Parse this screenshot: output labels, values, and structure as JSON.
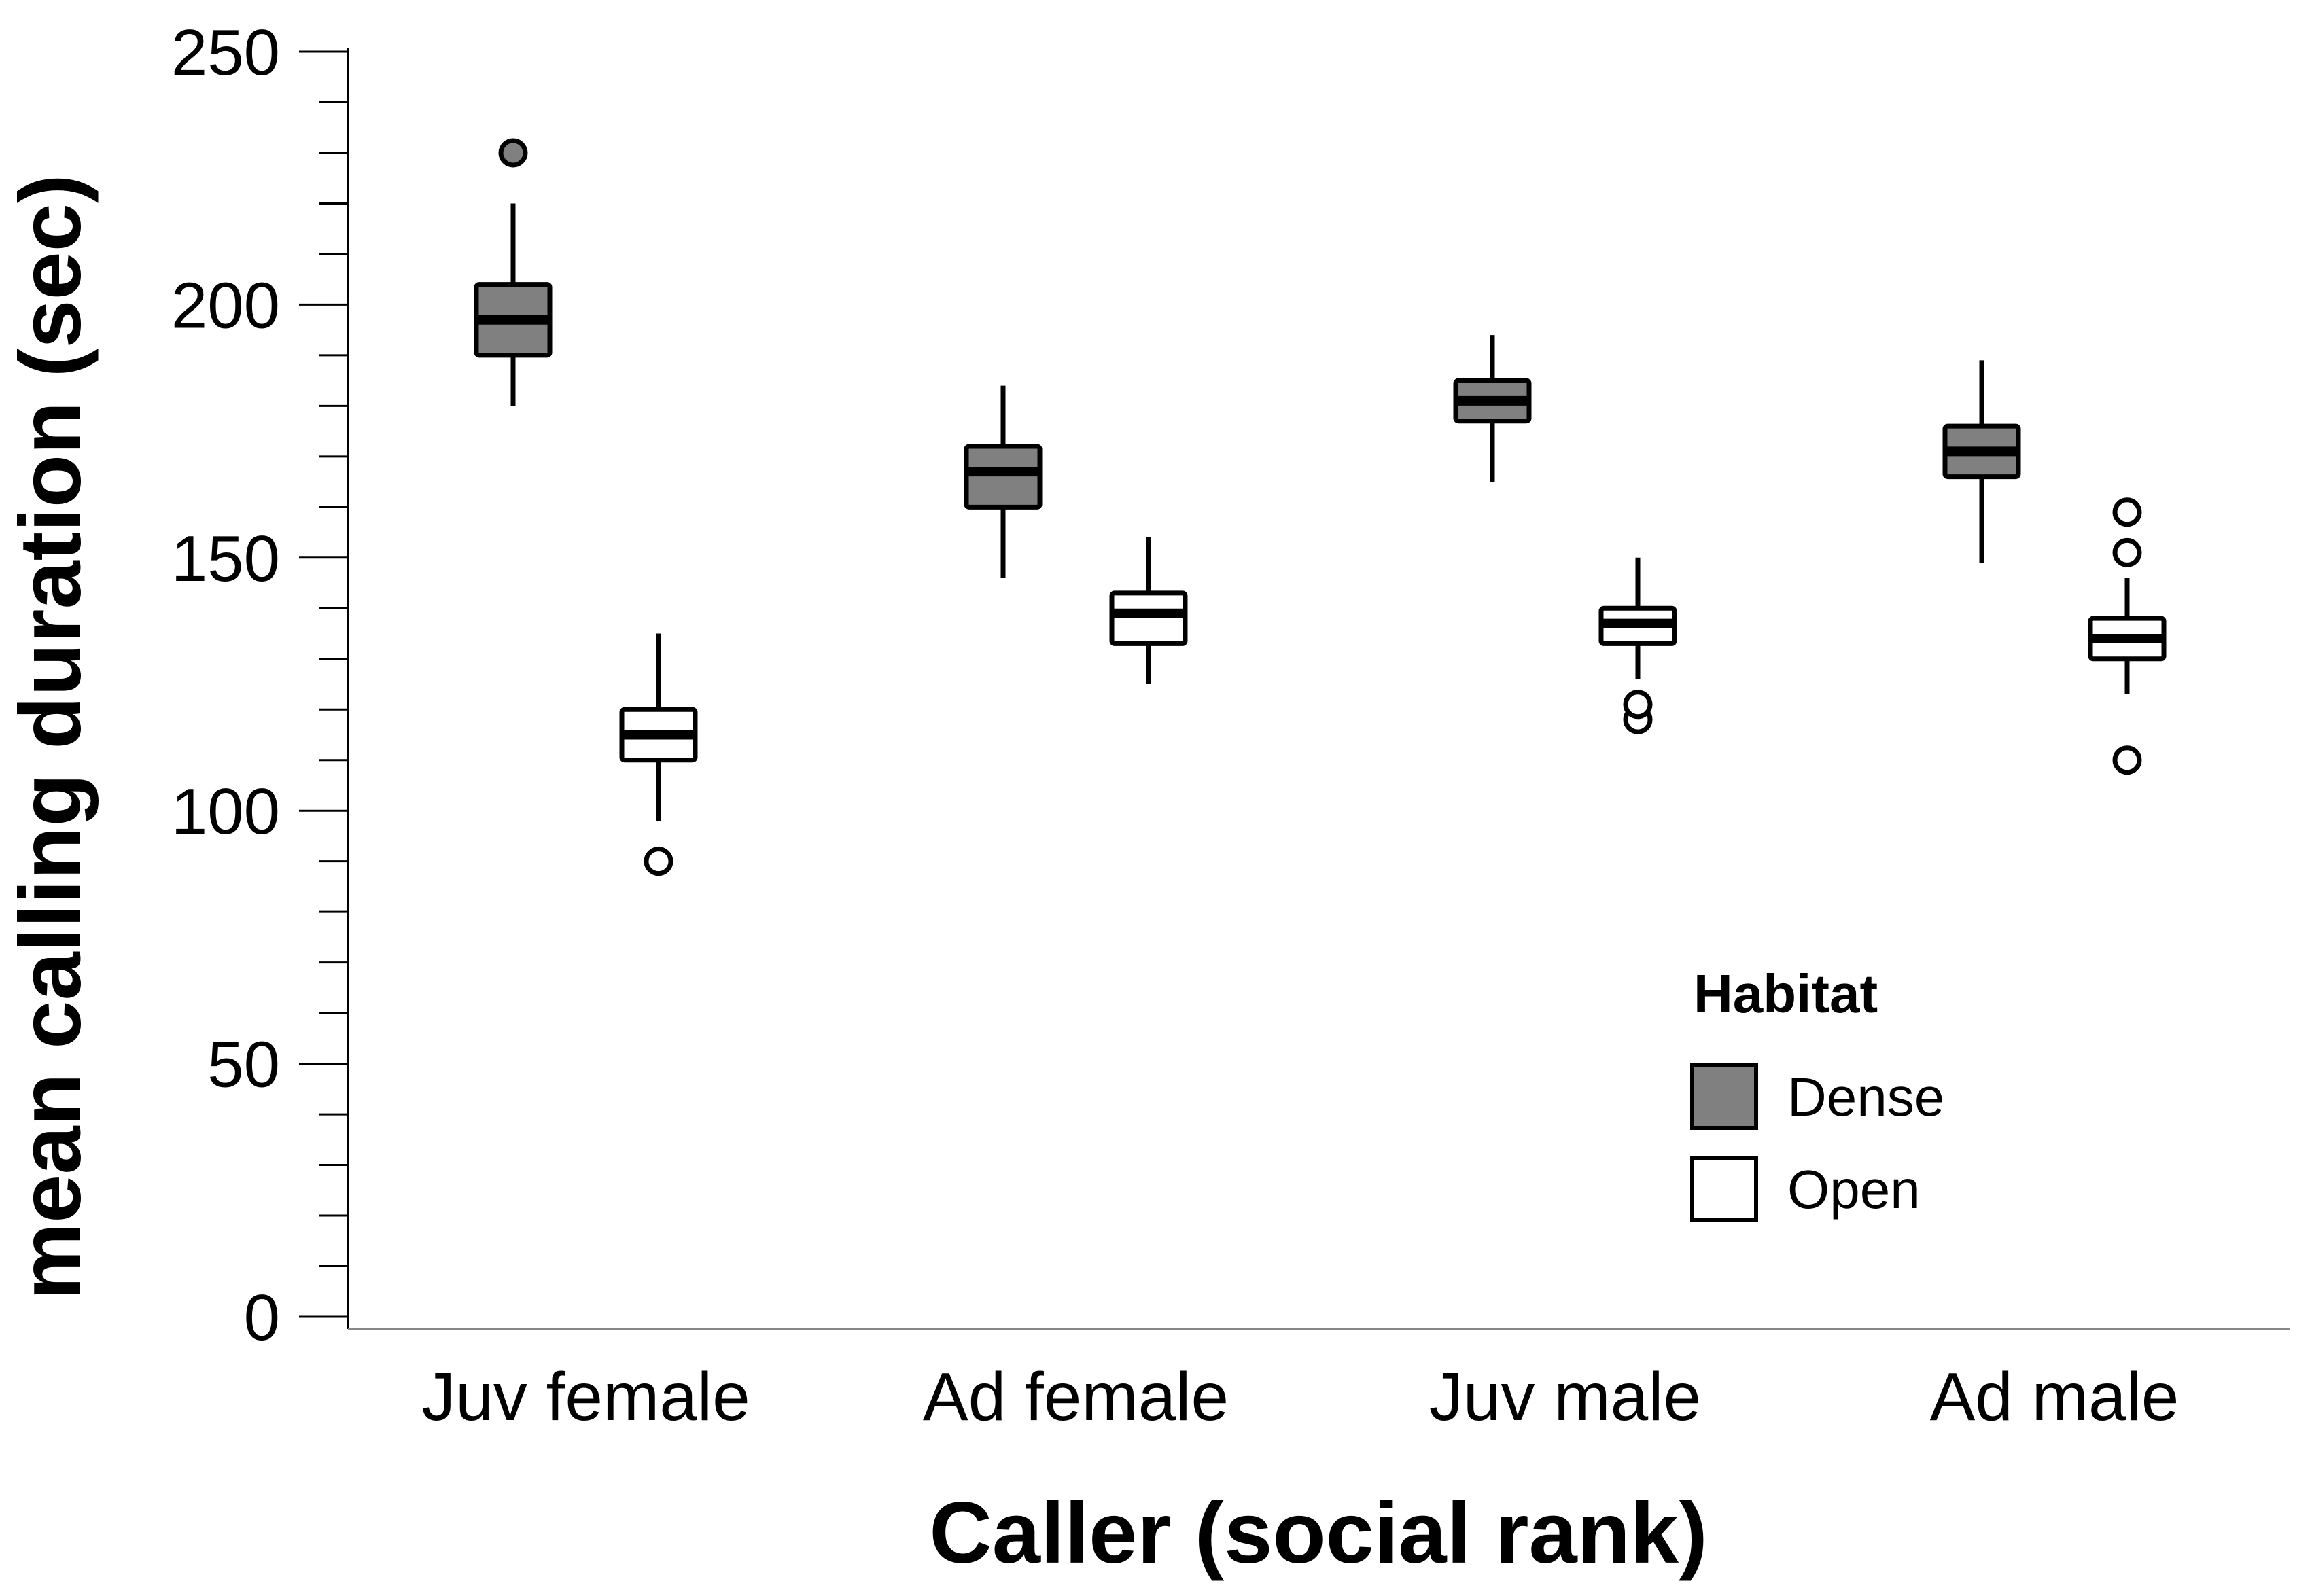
{
  "chart_data": {
    "type": "boxplot",
    "title": "",
    "xlabel": "Caller (social rank)",
    "ylabel": "mean calling duration (sec)",
    "ylim": [
      0,
      250
    ],
    "y_major_ticks": [
      0,
      50,
      100,
      150,
      200,
      250
    ],
    "y_minor_step": 10,
    "categories": [
      "Juv female",
      "Ad female",
      "Juv male",
      "Ad male"
    ],
    "legend": {
      "title": "Habitat",
      "position": "right-lower"
    },
    "series": [
      {
        "name": "Dense",
        "color": "#808080",
        "boxes": [
          {
            "whisker_low": 180,
            "q1": 190,
            "median": 197,
            "q3": 204,
            "whisker_high": 220,
            "outliers": [
              230
            ]
          },
          {
            "whisker_low": 146,
            "q1": 160,
            "median": 167,
            "q3": 172,
            "whisker_high": 184,
            "outliers": []
          },
          {
            "whisker_low": 165,
            "q1": 177,
            "median": 181,
            "q3": 185,
            "whisker_high": 194,
            "outliers": []
          },
          {
            "whisker_low": 149,
            "q1": 166,
            "median": 171,
            "q3": 176,
            "whisker_high": 189,
            "outliers": []
          }
        ]
      },
      {
        "name": "Open",
        "color": "#ffffff",
        "boxes": [
          {
            "whisker_low": 98,
            "q1": 110,
            "median": 115,
            "q3": 120,
            "whisker_high": 135,
            "outliers": [
              90
            ]
          },
          {
            "whisker_low": 125,
            "q1": 133,
            "median": 139,
            "q3": 143,
            "whisker_high": 154,
            "outliers": []
          },
          {
            "whisker_low": 126,
            "q1": 133,
            "median": 137,
            "q3": 140,
            "whisker_high": 150,
            "outliers": [
              118,
              121
            ]
          },
          {
            "whisker_low": 123,
            "q1": 130,
            "median": 134,
            "q3": 138,
            "whisker_high": 146,
            "outliers": [
              110,
              151,
              159
            ]
          }
        ]
      }
    ]
  }
}
